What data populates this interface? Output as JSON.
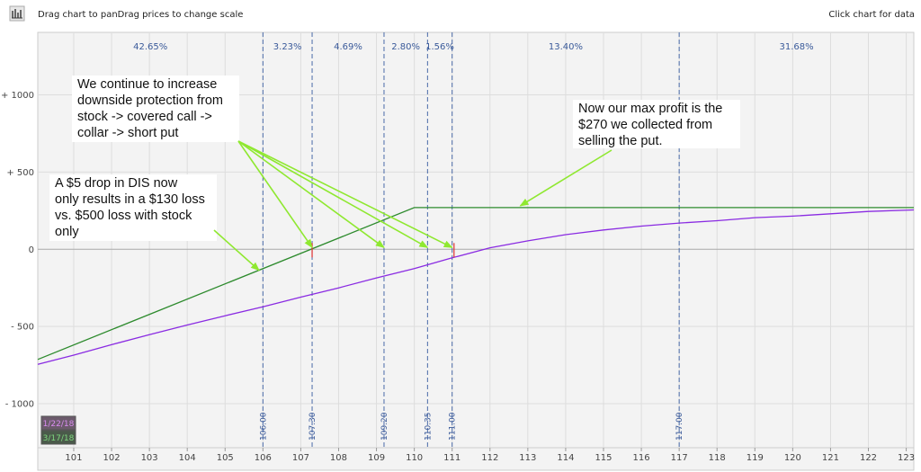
{
  "header": {
    "left_hint": "Drag chart to panDrag prices to change scale",
    "right_hint": "Click chart for data",
    "tool_icon": "chart-tool-icon"
  },
  "chart_data": {
    "type": "line",
    "x_ticks": [
      101,
      102,
      103,
      104,
      105,
      106,
      107,
      108,
      109,
      110,
      111,
      112,
      113,
      114,
      115,
      116,
      117,
      118,
      119,
      120,
      121,
      122,
      123
    ],
    "y_ticks": [
      {
        "value": 1000,
        "label": "+ 1000"
      },
      {
        "value": 500,
        "label": "+ 500"
      },
      {
        "value": 0,
        "label": "0"
      },
      {
        "value": -500,
        "label": "- 500"
      },
      {
        "value": -1000,
        "label": "- 1000"
      }
    ],
    "xlim": [
      100.05,
      123.2
    ],
    "ylim": [
      -1285,
      1405
    ],
    "grid": true,
    "series": [
      {
        "name": "3/17/18",
        "color": "#2e8b2e",
        "points": [
          [
            100.05,
            -713
          ],
          [
            110,
            270
          ],
          [
            123.2,
            270
          ]
        ]
      },
      {
        "name": "1/22/18",
        "color": "#8a2be2",
        "points": [
          [
            100.05,
            -745
          ],
          [
            101,
            -685
          ],
          [
            102,
            -618
          ],
          [
            103,
            -553
          ],
          [
            104,
            -490
          ],
          [
            105,
            -430
          ],
          [
            106,
            -372
          ],
          [
            107,
            -310
          ],
          [
            108,
            -250
          ],
          [
            109,
            -185
          ],
          [
            110,
            -125
          ],
          [
            111,
            -55
          ],
          [
            112,
            10
          ],
          [
            113,
            55
          ],
          [
            114,
            95
          ],
          [
            115,
            125
          ],
          [
            116,
            150
          ],
          [
            117,
            170
          ],
          [
            118,
            185
          ],
          [
            119,
            205
          ],
          [
            120,
            215
          ],
          [
            121,
            230
          ],
          [
            122,
            245
          ],
          [
            123.2,
            255
          ]
        ]
      }
    ],
    "vertical_markers": [
      {
        "x": 106.0,
        "label": "106.00"
      },
      {
        "x": 107.3,
        "label": "107.30"
      },
      {
        "x": 109.2,
        "label": "109.20"
      },
      {
        "x": 110.35,
        "label": "110.35"
      },
      {
        "x": 111.0,
        "label": "111.00"
      },
      {
        "x": 117.0,
        "label": "117.00"
      }
    ],
    "probabilities": [
      {
        "from": 100.05,
        "to": 106.0,
        "label": "42.65%"
      },
      {
        "from": 106.0,
        "to": 107.3,
        "label": "3.23%"
      },
      {
        "from": 107.3,
        "to": 109.2,
        "label": "4.69%"
      },
      {
        "from": 109.2,
        "to": 110.35,
        "label": "2.80%"
      },
      {
        "from": 110.35,
        "to": 111.0,
        "label": "1.56%"
      },
      {
        "from": 111.0,
        "to": 117.0,
        "label": "13.40%"
      },
      {
        "from": 117.0,
        "to": 123.2,
        "label": "31.68%"
      }
    ],
    "breakeven_marks": [
      107.3,
      111.05
    ],
    "legend": [
      {
        "label": "1/22/18",
        "color": "#8a2be2"
      },
      {
        "label": "3/17/18",
        "color": "#2e8b2e"
      }
    ],
    "annotations": [
      {
        "lines": [
          "We continue to increase",
          "downside protection from",
          "stock -> covered call ->",
          "collar -> short put"
        ],
        "arrow_targets": [
          [
            107.3,
            0
          ],
          [
            109.2,
            0
          ],
          [
            110.35,
            0
          ],
          [
            111.0,
            0
          ]
        ]
      },
      {
        "lines": [
          "Now our max profit is the",
          "$270 we collected from",
          "selling the put."
        ],
        "arrow_targets": [
          [
            112.8,
            270
          ]
        ]
      },
      {
        "lines": [
          "A $5 drop in DIS now",
          "only results in a $130 loss",
          "vs. $500 loss with stock",
          "only"
        ],
        "arrow_targets": [
          [
            105.9,
            -148
          ]
        ]
      }
    ]
  }
}
